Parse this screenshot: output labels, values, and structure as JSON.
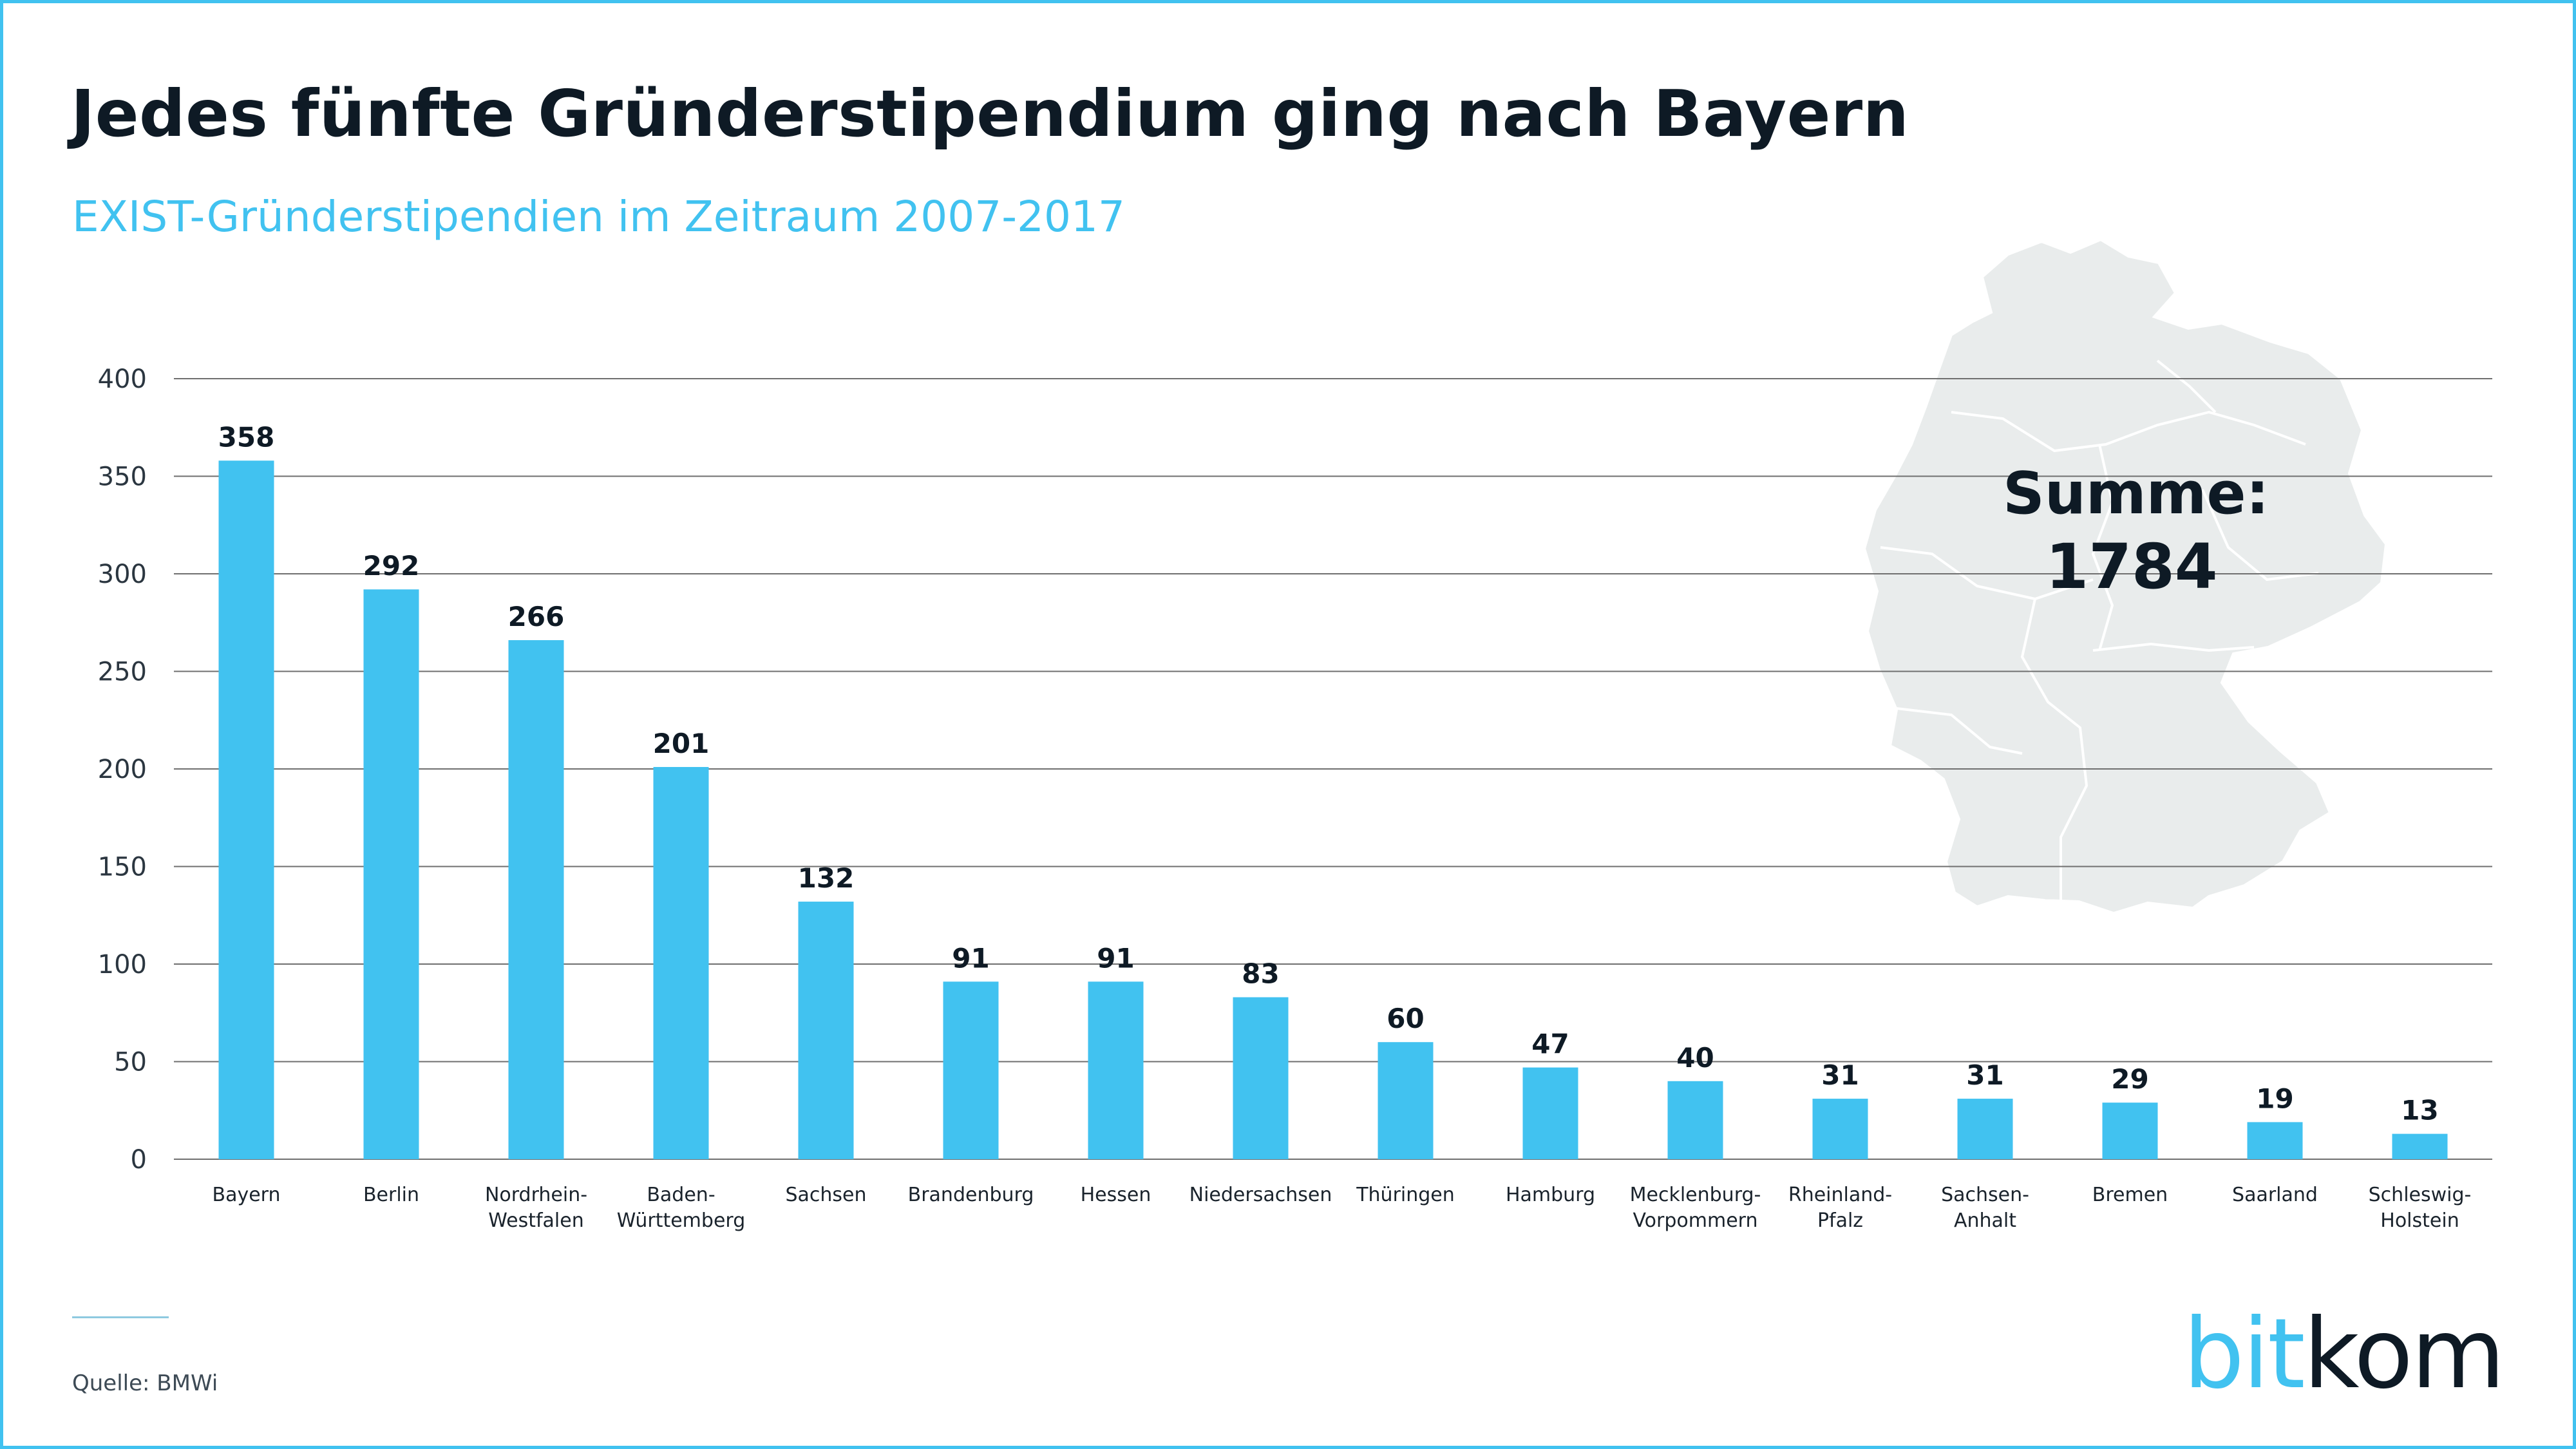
{
  "title": "Jedes fünfte Gründerstipendium ging nach Bayern",
  "subtitle": "EXIST-Gründerstipendien im Zeitraum 2007-2017",
  "total": {
    "label": "Summe:",
    "value": "1784"
  },
  "source": "Quelle: BMWi",
  "logo": {
    "part1": "bit",
    "part2": "kom"
  },
  "colors": {
    "bar": "#41c2f0",
    "text": "#0e1a25",
    "accent": "#41c2f0",
    "map": "#e9ecec",
    "grid": "#6f6f6f"
  },
  "chart_data": {
    "type": "bar",
    "categories": [
      "Bayern",
      "Berlin",
      "Nordrhein-\nWestfalen",
      "Baden-\nWürttemberg",
      "Sachsen",
      "Brandenburg",
      "Hessen",
      "Niedersachsen",
      "Thüringen",
      "Hamburg",
      "Mecklenburg-\nVorpommern",
      "Rheinland-\nPfalz",
      "Sachsen-\nAnhalt",
      "Bremen",
      "Saarland",
      "Schleswig-\nHolstein"
    ],
    "values": [
      358,
      292,
      266,
      201,
      132,
      91,
      91,
      83,
      60,
      47,
      40,
      31,
      31,
      29,
      19,
      13
    ],
    "ylim": [
      0,
      400
    ],
    "yticks": [
      0,
      50,
      100,
      150,
      200,
      250,
      300,
      350,
      400
    ],
    "grid": true,
    "data_labels": true
  }
}
